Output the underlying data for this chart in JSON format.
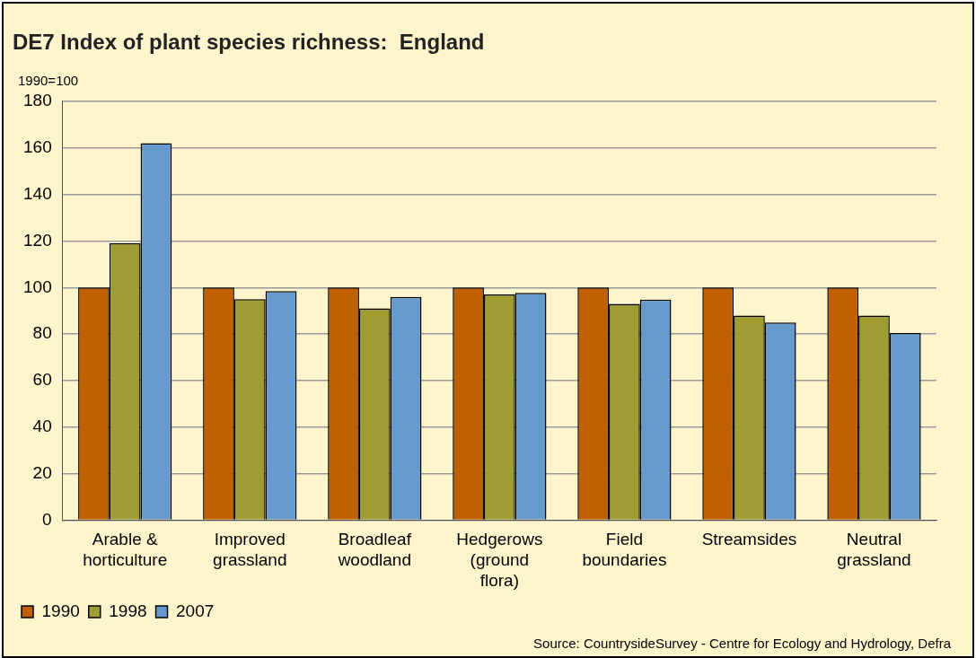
{
  "chart_data": {
    "type": "bar",
    "title": "DE7 Index of plant species richness:  England",
    "ylabel": "1990=100",
    "categories": [
      "Arable & horticulture",
      "Improved grassland",
      "Broadleaf woodland",
      "Hedgerows (ground flora)",
      "Field boundaries",
      "Streamsides",
      "Neutral grassland"
    ],
    "series": [
      {
        "name": "1990",
        "color": "#c06000",
        "values": [
          100,
          100,
          100,
          100,
          100,
          100,
          100
        ]
      },
      {
        "name": "1998",
        "color": "#a09c34",
        "values": [
          119,
          95,
          91,
          97,
          93,
          88,
          88
        ]
      },
      {
        "name": "2007",
        "color": "#6699cc",
        "values": [
          162,
          98.5,
          96,
          97.7,
          94.8,
          85,
          80.4
        ]
      }
    ],
    "ylim": [
      0,
      180
    ],
    "yticks": [
      0,
      20,
      40,
      60,
      80,
      100,
      120,
      140,
      160,
      180
    ],
    "grid": "y",
    "legend": "bottom left",
    "annotations": [
      "Source: CountrysideSurvey - Centre for Ecology and Hydrology, Defra"
    ]
  }
}
